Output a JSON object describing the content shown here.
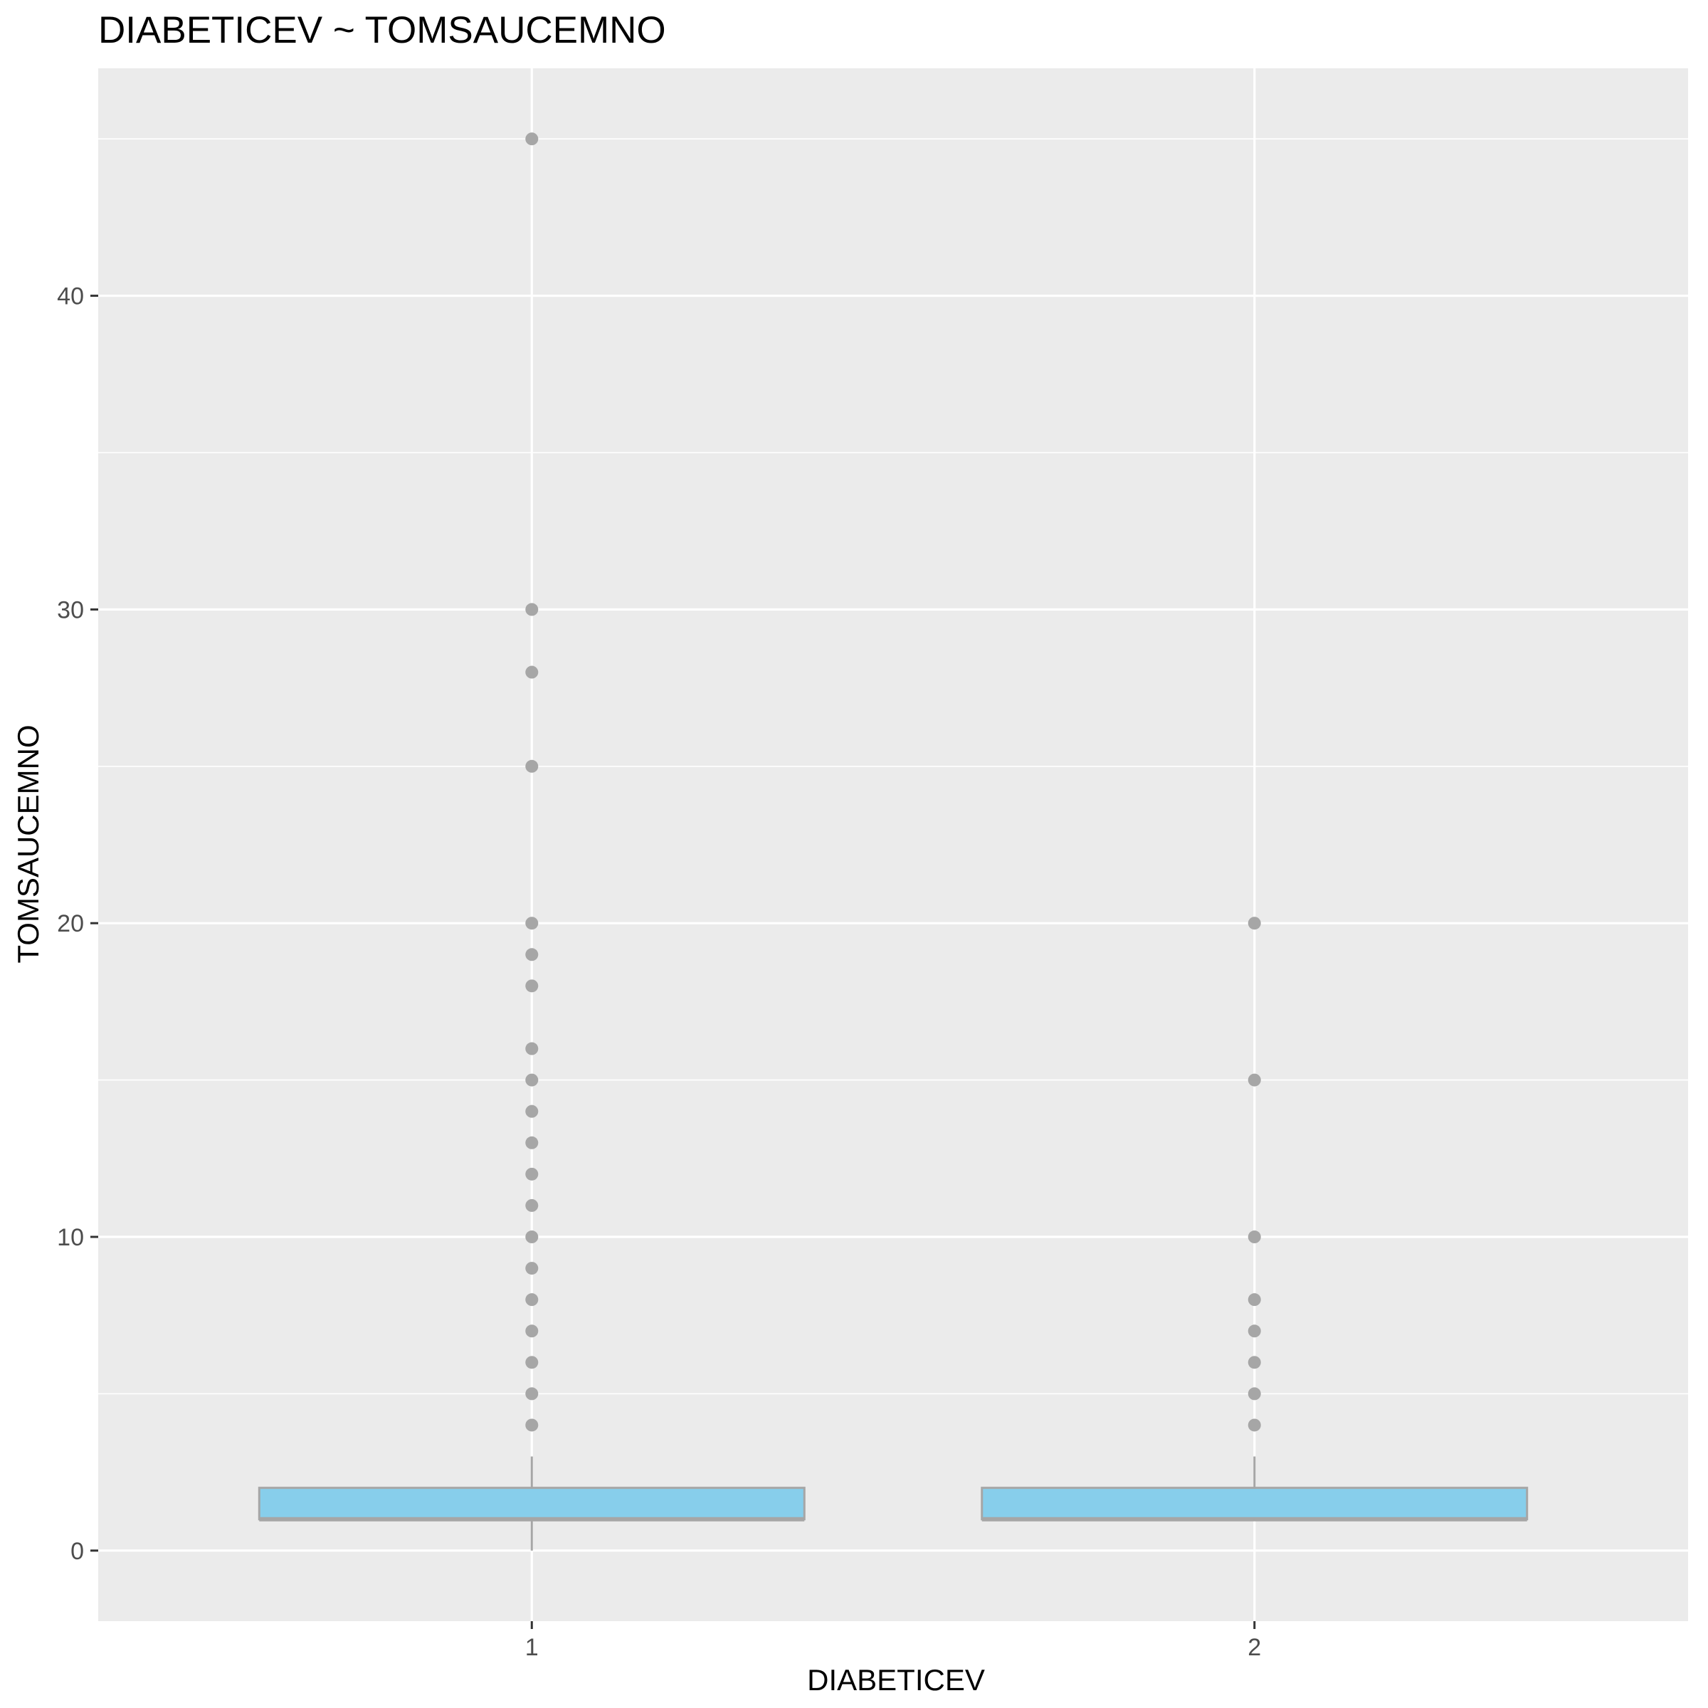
{
  "chart_data": {
    "type": "boxplot",
    "title": "DIABETICEV ~ TOMSAUCEMNO",
    "xlabel": "DIABETICEV",
    "ylabel": "TOMSAUCEMNO",
    "categories": [
      "1",
      "2"
    ],
    "yticks": [
      0,
      10,
      20,
      30,
      40
    ],
    "yticks_minor": [
      5,
      15,
      25,
      35,
      45
    ],
    "ylim": [
      -2.25,
      47.25
    ],
    "grid": true,
    "legend": "none",
    "boxes": [
      {
        "category": "1",
        "whisker_low": 0,
        "q1": 1,
        "median": 1,
        "q3": 2,
        "whisker_high": 3,
        "outliers": [
          4,
          5,
          6,
          7,
          8,
          9,
          10,
          11,
          12,
          13,
          14,
          15,
          16,
          18,
          19,
          20,
          25,
          28,
          30,
          45
        ]
      },
      {
        "category": "2",
        "whisker_low": 1,
        "q1": 1,
        "median": 1,
        "q3": 2,
        "whisker_high": 3,
        "outliers": [
          4,
          5,
          6,
          7,
          8,
          10,
          15,
          20
        ]
      }
    ],
    "colors": {
      "panel": "#ebebeb",
      "grid": "#ffffff",
      "box_fill": "#87ceeb",
      "box_line": "#a6a6a6",
      "outlier": "#a6a6a6"
    }
  }
}
